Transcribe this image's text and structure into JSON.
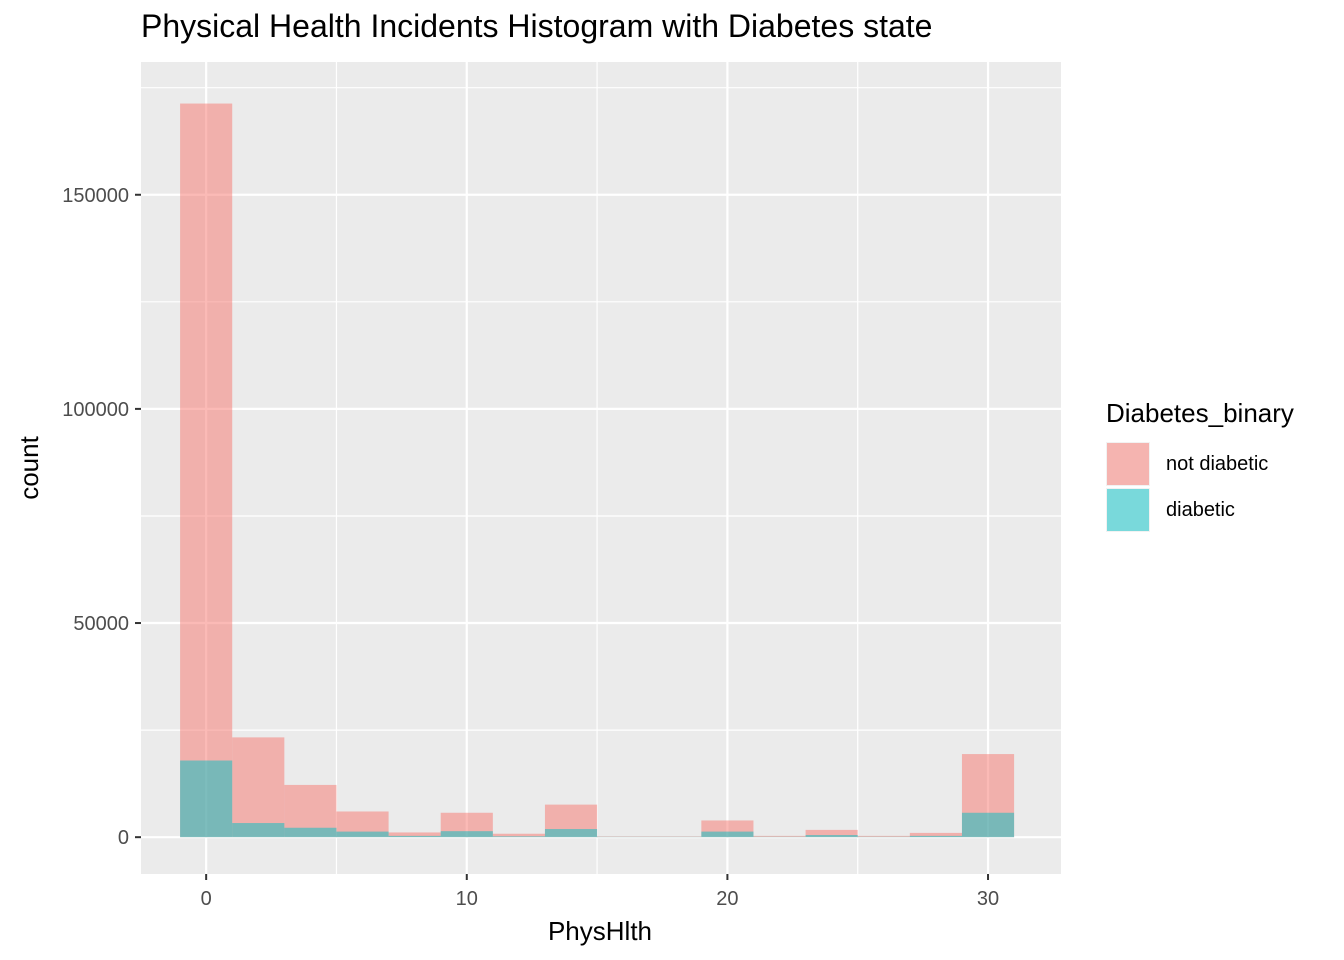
{
  "chart_data": {
    "type": "bar",
    "title": "Physical Health Incidents Histogram with Diabetes state",
    "xlabel": "PhysHlth",
    "ylabel": "count",
    "x_ticks": [
      0,
      10,
      20,
      30
    ],
    "y_ticks": [
      0,
      50000,
      100000,
      150000
    ],
    "xlim": [
      -2.5,
      32.8
    ],
    "ylim": [
      -8600,
      181000
    ],
    "binwidth": 2,
    "bin_centers": [
      0,
      2,
      4,
      6,
      8,
      10,
      12,
      14,
      16,
      18,
      20,
      22,
      24,
      26,
      28,
      30
    ],
    "stacked": false,
    "series": [
      {
        "name": "not diabetic",
        "color": "#F8766D",
        "values": [
          171300,
          23300,
          12200,
          6000,
          1100,
          5700,
          800,
          7600,
          200,
          200,
          3900,
          300,
          1700,
          300,
          1000,
          19400
        ]
      },
      {
        "name": "diabetic",
        "color": "#00BFC4",
        "values": [
          17900,
          3300,
          2200,
          1300,
          300,
          1400,
          200,
          1900,
          100,
          100,
          1300,
          100,
          500,
          100,
          300,
          5700
        ]
      }
    ],
    "legend": {
      "title": "Diabetes_binary",
      "position": "right",
      "entries": [
        "not diabetic",
        "diabetic"
      ]
    },
    "grid": true,
    "background": "#EBEBEB"
  }
}
